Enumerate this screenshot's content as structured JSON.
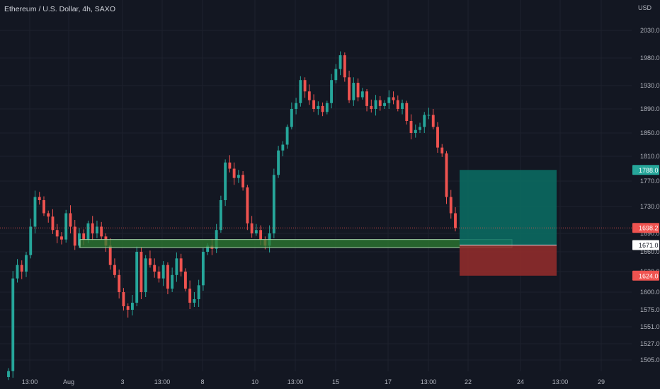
{
  "header": {
    "symbol_title": "Ethereum / U.S. Dollar, 4h, SAXO",
    "currency": "USD"
  },
  "colors": {
    "background": "#131722",
    "grid": "#1e222d",
    "up": "#26a69a",
    "down": "#ef5350",
    "zone_fill": "#2e7d32",
    "zone_border": "#a5d6a7",
    "target_fill": "#0b6e64",
    "stop_fill": "#8f2b2b",
    "axis_text": "#b2b5be"
  },
  "chart_data": {
    "type": "candlestick",
    "ylim": [
      1485,
      2050
    ],
    "price_ticks": [
      "2030.0",
      "1980.0",
      "1930.0",
      "1890.0",
      "1850.0",
      "1810.0",
      "1770.0",
      "1730.0",
      "1690.0",
      "1660.0",
      "1630.0",
      "1600.0",
      "1575.0",
      "1551.0",
      "1527.0",
      "1505.0"
    ],
    "time_ticks": [
      "13:00",
      "Aug",
      "3",
      "13:00",
      "8",
      "10",
      "13:00",
      "15",
      "17",
      "13:00",
      "22",
      "24",
      "13:00",
      "29"
    ],
    "price_tags": [
      {
        "label": "1788.0",
        "value": 1788,
        "kind": "target"
      },
      {
        "label": "1698.2",
        "value": 1698.2,
        "kind": "last"
      },
      {
        "label": "1671.0",
        "value": 1671,
        "kind": "entry"
      },
      {
        "label": "1624.0",
        "value": 1624,
        "kind": "stop"
      }
    ],
    "support_zone": {
      "low": 1667,
      "high": 1680
    },
    "position": {
      "entry": 1671,
      "target": 1788,
      "stop": 1624
    },
    "closes": [
      1490,
      1620,
      1640,
      1630,
      1655,
      1700,
      1745,
      1740,
      1720,
      1715,
      1695,
      1685,
      1680,
      1720,
      1700,
      1670,
      1690,
      1680,
      1705,
      1690,
      1700,
      1685,
      1670,
      1640,
      1625,
      1600,
      1580,
      1575,
      1585,
      1660,
      1600,
      1650,
      1640,
      1630,
      1620,
      1640,
      1605,
      1625,
      1650,
      1630,
      1605,
      1585,
      1590,
      1610,
      1660,
      1670,
      1665,
      1695,
      1740,
      1800,
      1790,
      1775,
      1780,
      1760,
      1705,
      1690,
      1695,
      1680,
      1670,
      1690,
      1780,
      1820,
      1830,
      1860,
      1890,
      1900,
      1940,
      1920,
      1905,
      1890,
      1895,
      1885,
      1900,
      1940,
      1960,
      1985,
      1945,
      1905,
      1935,
      1910,
      1920,
      1895,
      1890,
      1905,
      1895,
      1900,
      1910,
      1905,
      1890,
      1900,
      1870,
      1850,
      1855,
      1860,
      1880,
      1880,
      1860,
      1825,
      1815,
      1745,
      1720,
      1698
    ]
  }
}
